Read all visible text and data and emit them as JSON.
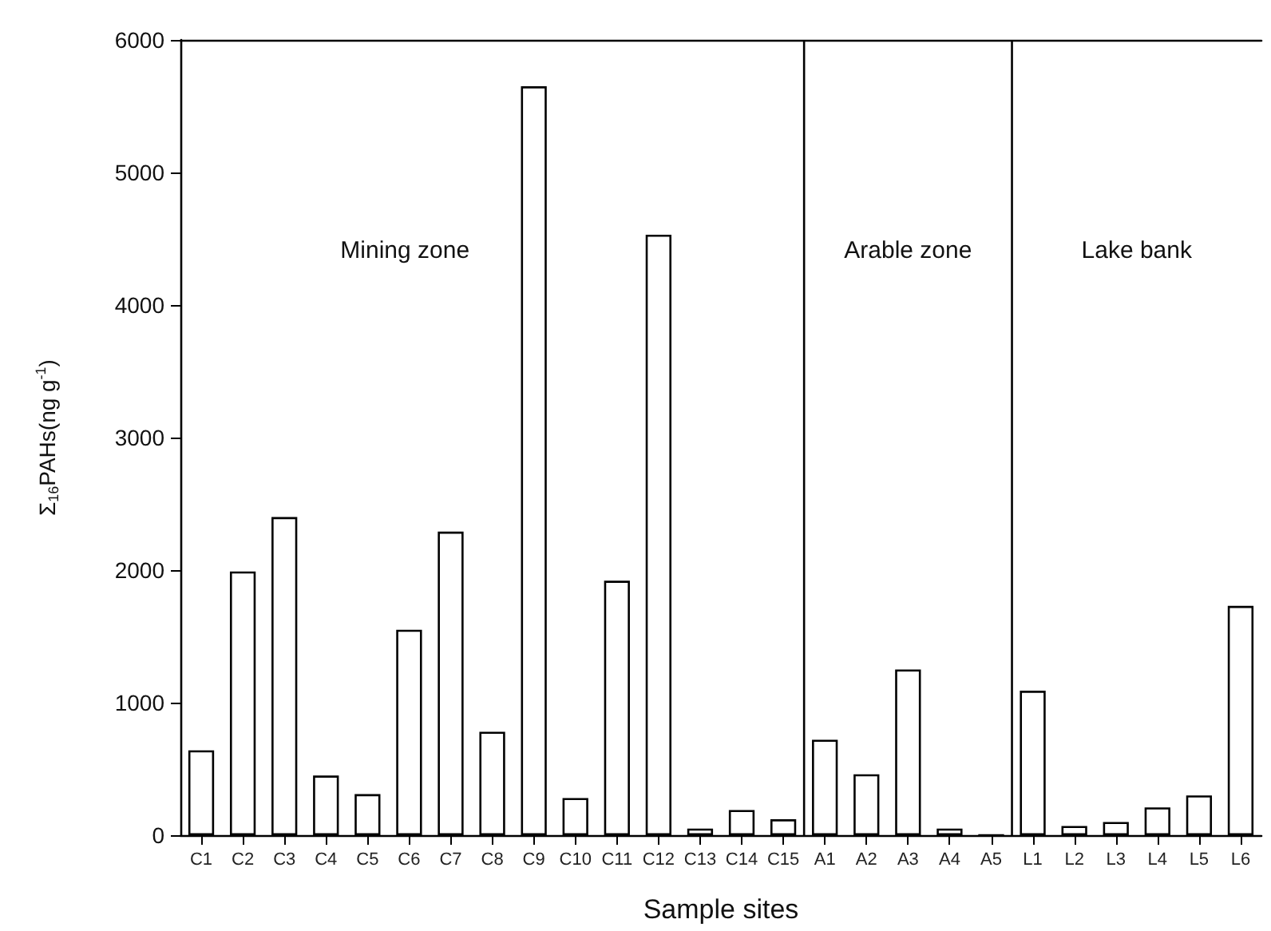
{
  "chart_data": {
    "type": "bar",
    "xlabel": "Sample sites",
    "ylabel": "Σ$_{16}$PAHs(ng g$^{-1}$)",
    "categories": [
      "C1",
      "C2",
      "C3",
      "C4",
      "C5",
      "C6",
      "C7",
      "C8",
      "C9",
      "C10",
      "C11",
      "C12",
      "C13",
      "C14",
      "C15",
      "A1",
      "A2",
      "A3",
      "A4",
      "A5",
      "L1",
      "L2",
      "L3",
      "L4",
      "L5",
      "L6"
    ],
    "values": [
      640,
      1990,
      2400,
      450,
      310,
      1550,
      2290,
      780,
      5650,
      280,
      1920,
      4530,
      50,
      190,
      120,
      720,
      460,
      1250,
      50,
      0,
      1090,
      70,
      100,
      210,
      300,
      1730
    ],
    "color": "#ffffff",
    "ylim": [
      0,
      6000
    ],
    "yticks": [
      0,
      1000,
      2000,
      3000,
      4000,
      5000,
      6000
    ],
    "grid": false,
    "annotations": [
      "Mining zone",
      "Arable zone",
      "Lake bank"
    ]
  }
}
